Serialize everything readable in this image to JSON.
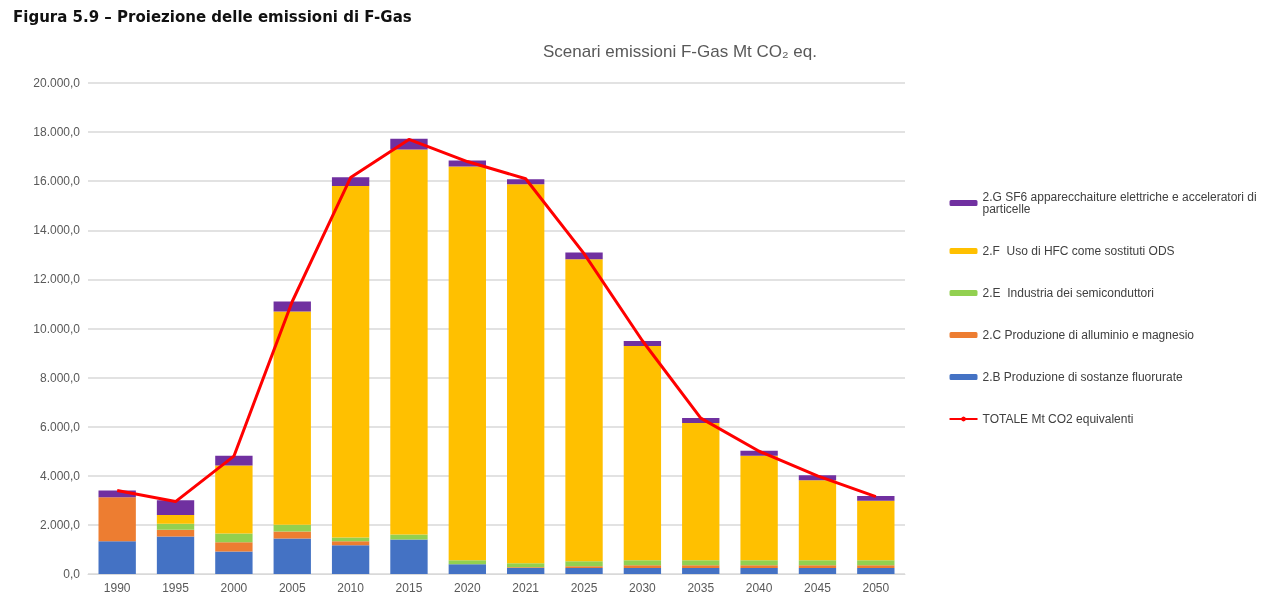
{
  "chart_data": {
    "type": "bar",
    "title": "Figura 5.9 – Proiezione delle emissioni di F-Gas",
    "subtitle": "Scenari emissioni F-Gas Mt CO₂ eq.",
    "categories": [
      "1990",
      "1995",
      "2000",
      "2005",
      "2010",
      "2015",
      "2020",
      "2021",
      "2025",
      "2030",
      "2035",
      "2040",
      "2045",
      "2050"
    ],
    "stacked": true,
    "series": [
      {
        "name": "2.B Produzione di sostanze fluorurate",
        "color": "#4472c4",
        "values": [
          1330,
          1530,
          920,
          1450,
          1170,
          1410,
          400,
          240,
          240,
          240,
          240,
          240,
          240,
          240
        ]
      },
      {
        "name": "2.C Produzione di alluminio e magnesio",
        "color": "#ed7d31",
        "values": [
          1800,
          270,
          370,
          280,
          160,
          0,
          0,
          40,
          80,
          120,
          120,
          120,
          120,
          120
        ]
      },
      {
        "name": "2.E  Industria dei semiconduttori",
        "color": "#92d050",
        "values": [
          0,
          250,
          360,
          280,
          160,
          200,
          160,
          160,
          200,
          200,
          200,
          200,
          200,
          200
        ]
      },
      {
        "name": "2.F  Uso di HFC come sostituti ODS",
        "color": "#ffc000",
        "values": [
          0,
          350,
          2770,
          8680,
          14310,
          15680,
          16040,
          15440,
          12300,
          8730,
          5590,
          4260,
          3260,
          2420
        ]
      },
      {
        "name": "2.G SF6 apparecchaiture elettriche e acceleratori di particelle",
        "color": "#7030a0",
        "values": [
          270,
          600,
          400,
          410,
          360,
          440,
          240,
          200,
          280,
          200,
          200,
          200,
          200,
          200
        ]
      },
      {
        "name": "TOTALE Mt CO2 equivalenti",
        "type": "line",
        "color": "#ff0000",
        "values": [
          3400,
          2950,
          4800,
          11100,
          16150,
          17700,
          16800,
          16100,
          13050,
          9500,
          6350,
          5000,
          4000,
          3150
        ]
      }
    ],
    "ylim": [
      0,
      20000
    ],
    "yticks": [
      {
        "value": 0,
        "label": "0,0"
      },
      {
        "value": 2000,
        "label": "2.000,0"
      },
      {
        "value": 4000,
        "label": "4.000,0"
      },
      {
        "value": 6000,
        "label": "6.000,0"
      },
      {
        "value": 8000,
        "label": "8.000,0"
      },
      {
        "value": 10000,
        "label": "10.000,0"
      },
      {
        "value": 12000,
        "label": "12.000,0"
      },
      {
        "value": 14000,
        "label": "14.000,0"
      },
      {
        "value": 16000,
        "label": "16.000,0"
      },
      {
        "value": 18000,
        "label": "18.000,0"
      },
      {
        "value": 20000,
        "label": "20.000,0"
      }
    ],
    "grid": "y",
    "legend": "right",
    "marker": "none"
  }
}
